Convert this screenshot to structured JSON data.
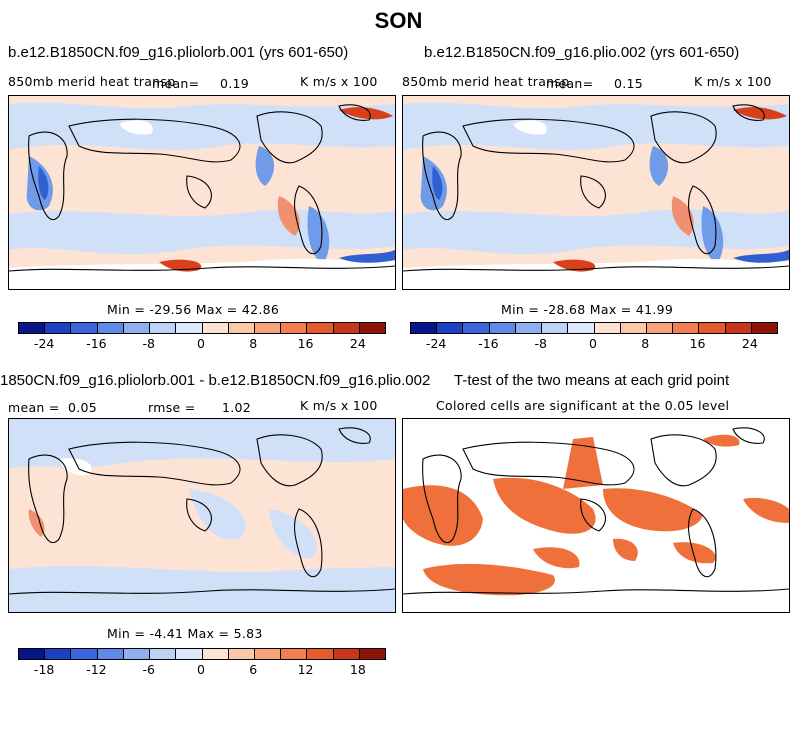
{
  "figure": {
    "season": "SON",
    "panels": [
      {
        "title": "b.e12.B1850CN.f09_g16.pliolorb.001 (yrs 601-650)",
        "variable": "850mb merid heat transp",
        "mean_label": "mean=",
        "mean_value": "0.19",
        "units": "K m/s x 100",
        "min_max": "Min = -29.56 Max =  42.86"
      },
      {
        "title": "b.e12.B1850CN.f09_g16.plio.002 (yrs 601-650)",
        "variable": "850mb merid heat transp",
        "mean_label": "mean=",
        "mean_value": "0.15",
        "units": "K m/s x 100",
        "min_max": "Min = -28.68 Max =  41.99"
      },
      {
        "title": "1850CN.f09_g16.pliolorb.001 - b.e12.B1850CN.f09_g16.plio.002",
        "mean_label": "mean =",
        "mean_value": "0.05",
        "rmse_label": "rmse =",
        "rmse_value": "1.02",
        "units": "K m/s x 100",
        "min_max": "Min =  -4.41 Max =   5.83"
      },
      {
        "title": "T-test of the two means at each grid point",
        "subtitle": "Colored cells are significant at the 0.05 level"
      }
    ],
    "colorbar_main": {
      "colors": [
        "#08148a",
        "#1c3fc4",
        "#3a65dc",
        "#5f8ae9",
        "#8fb1f0",
        "#bcd3f7",
        "#dde9fb",
        "#fde3d3",
        "#fbc7a9",
        "#f7a47c",
        "#f27e51",
        "#e55a2e",
        "#c7361b",
        "#8f1408"
      ],
      "labels": [
        "-24",
        "-16",
        "-8",
        "0",
        "8",
        "16",
        "24"
      ]
    },
    "colorbar_diff": {
      "colors": [
        "#08148a",
        "#1c3fc4",
        "#3a65dc",
        "#5f8ae9",
        "#8fb1f0",
        "#bcd3f7",
        "#dde9fb",
        "#fde3d3",
        "#fbc7a9",
        "#f7a47c",
        "#f27e51",
        "#e55a2e",
        "#c7361b",
        "#8f1408"
      ],
      "labels": [
        "-18",
        "-12",
        "-6",
        "0",
        "6",
        "12",
        "18"
      ]
    },
    "palette": {
      "light_blue": "#cfe0f8",
      "blue": "#6f9be8",
      "dark_blue": "#2f5fd0",
      "light_red": "#fde3d3",
      "red": "#f09070",
      "dark_red": "#d8401c",
      "signif": "#f0703c"
    }
  }
}
